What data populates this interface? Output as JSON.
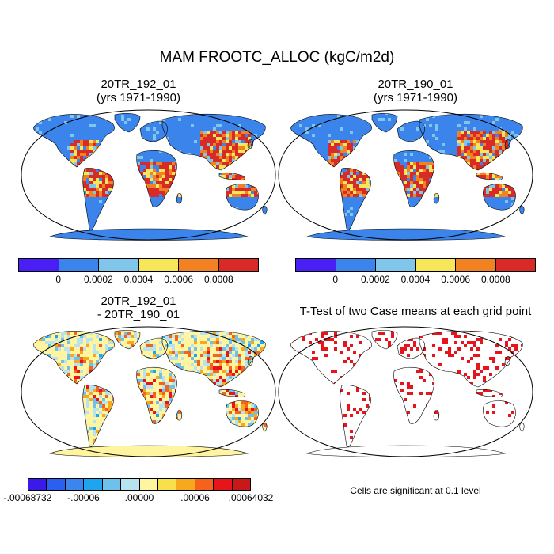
{
  "title": "MAM FROOTC_ALLOC (kgC/m2d)",
  "panels": [
    {
      "title_line1": "20TR_192_01",
      "title_line2": "(yrs 1971-1990)"
    },
    {
      "title_line1": "20TR_190_01",
      "title_line2": "(yrs 1971-1990)"
    },
    {
      "title_line1": "20TR_192_01",
      "title_line2": "- 20TR_190_01"
    },
    {
      "title_line1": "T-Test of two Case means at each grid point",
      "title_line2": ""
    }
  ],
  "colorbar_abs": {
    "colors": [
      "#4a1ff5",
      "#3a84ec",
      "#80c6ea",
      "#f8e65a",
      "#f28122",
      "#d82a27"
    ],
    "labels": [
      "0",
      "0.0002",
      "0.0004",
      "0.0006",
      "0.0008"
    ]
  },
  "colorbar_diff": {
    "colors": [
      "#3a1ae8",
      "#2a5ff0",
      "#3a86ee",
      "#1fa5f0",
      "#6ec1ea",
      "#b7e3f0",
      "#fff4a0",
      "#f8e04a",
      "#f8a81c",
      "#f4621c",
      "#e8141c",
      "#c81818"
    ],
    "labels": [
      "-.00068732",
      "-.00006",
      ".00000",
      ".00006",
      ".00064032"
    ]
  },
  "significance_note": "Cells are significant at 0.1 level",
  "colors": {
    "land_default": "#3a84ec",
    "ocean": "#ffffff",
    "significant": "#e8141c",
    "diff_base": "#fff4a0"
  }
}
